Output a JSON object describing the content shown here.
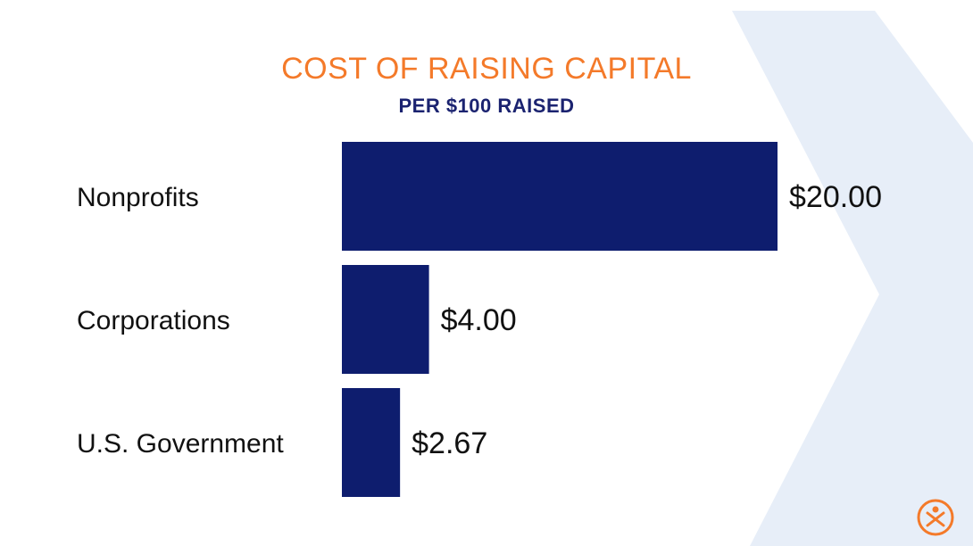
{
  "colors": {
    "title": "#f47a2a",
    "subtitle": "#1b2370",
    "bar": "#0e1d6e",
    "chevron": "#e7eef8",
    "logo": "#f47a2a"
  },
  "logo_icon": "person-circle-icon",
  "chart_data": {
    "type": "bar",
    "orientation": "horizontal",
    "title": "COST OF RAISING CAPITAL",
    "subtitle": "PER $100 RAISED",
    "categories": [
      "Nonprofits",
      "Corporations",
      "U.S. Government"
    ],
    "values": [
      20.0,
      4.0,
      2.67
    ],
    "value_labels": [
      "$20.00",
      "$4.00",
      "$2.67"
    ],
    "xlim": [
      0,
      20
    ],
    "grid": false,
    "legend": "none"
  }
}
